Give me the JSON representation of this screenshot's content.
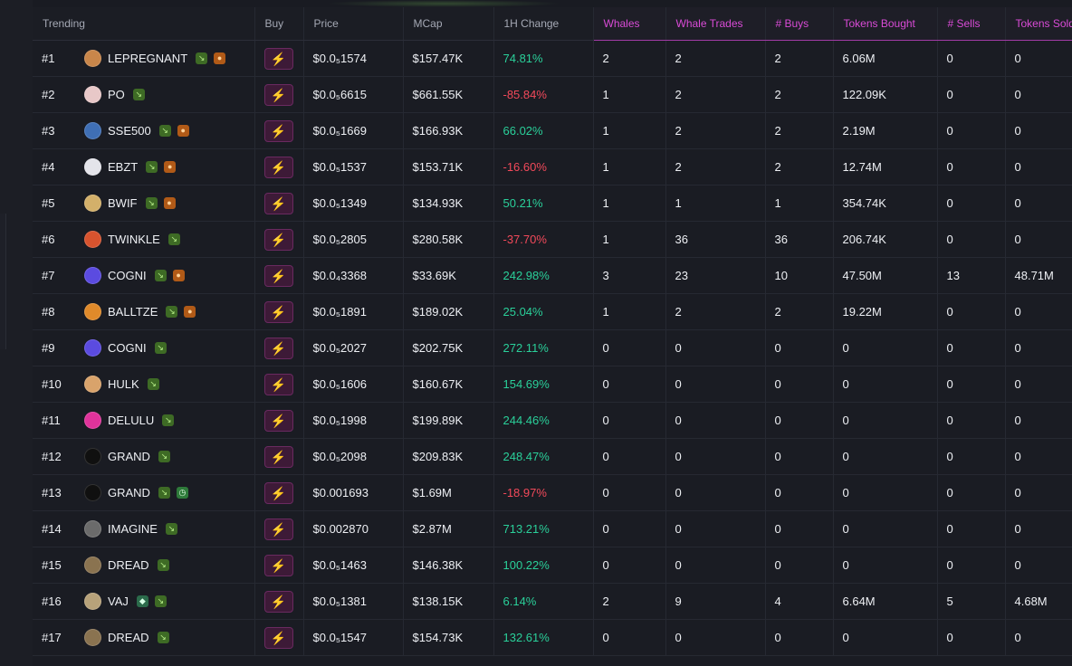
{
  "columns": {
    "trending": "Trending",
    "buy": "Buy",
    "price": "Price",
    "mcap": "MCap",
    "change": "1H Change",
    "whales": "Whales",
    "whale_trades": "Whale Trades",
    "buys": "# Buys",
    "tokens_bought": "Tokens Bought",
    "sells": "# Sells",
    "tokens_sold": "Tokens Sold"
  },
  "colors": {
    "accent": "#d94bd6",
    "positive": "#2ad09a",
    "negative": "#f2495a",
    "buy_icon": "#ff3ff0"
  },
  "buy_icon": "lightning-icon",
  "rows": [
    {
      "rank": "#1",
      "token": "LEPREGNANT",
      "avatar": "#c9864a",
      "badges": [
        "sprout",
        "cookie"
      ],
      "price": "$0.0₅1574",
      "mcap": "$157.47K",
      "change": "74.81%",
      "dir": "pos",
      "whales": "2",
      "whale_trades": "2",
      "buys": "2",
      "tokens_bought": "6.06M",
      "sells": "0",
      "tokens_sold": "0"
    },
    {
      "rank": "#2",
      "token": "PO",
      "avatar": "#e8c8c8",
      "badges": [
        "sprout"
      ],
      "price": "$0.0₅6615",
      "mcap": "$661.55K",
      "change": "-85.84%",
      "dir": "neg",
      "whales": "1",
      "whale_trades": "2",
      "buys": "2",
      "tokens_bought": "122.09K",
      "sells": "0",
      "tokens_sold": "0"
    },
    {
      "rank": "#3",
      "token": "SSE500",
      "avatar": "#3f6fb5",
      "badges": [
        "sprout",
        "cookie"
      ],
      "price": "$0.0₅1669",
      "mcap": "$166.93K",
      "change": "66.02%",
      "dir": "pos",
      "whales": "1",
      "whale_trades": "2",
      "buys": "2",
      "tokens_bought": "2.19M",
      "sells": "0",
      "tokens_sold": "0"
    },
    {
      "rank": "#4",
      "token": "EBZT",
      "avatar": "#e4e4ea",
      "badges": [
        "sprout",
        "cookie"
      ],
      "price": "$0.0₅1537",
      "mcap": "$153.71K",
      "change": "-16.60%",
      "dir": "neg",
      "whales": "1",
      "whale_trades": "2",
      "buys": "2",
      "tokens_bought": "12.74M",
      "sells": "0",
      "tokens_sold": "0"
    },
    {
      "rank": "#5",
      "token": "BWIF",
      "avatar": "#d3b06a",
      "badges": [
        "sprout",
        "cookie"
      ],
      "price": "$0.0₅1349",
      "mcap": "$134.93K",
      "change": "50.21%",
      "dir": "pos",
      "whales": "1",
      "whale_trades": "1",
      "buys": "1",
      "tokens_bought": "354.74K",
      "sells": "0",
      "tokens_sold": "0"
    },
    {
      "rank": "#6",
      "token": "TWINKLE",
      "avatar": "#d8532e",
      "badges": [
        "sprout"
      ],
      "price": "$0.0₅2805",
      "mcap": "$280.58K",
      "change": "-37.70%",
      "dir": "neg",
      "whales": "1",
      "whale_trades": "36",
      "buys": "36",
      "tokens_bought": "206.74K",
      "sells": "0",
      "tokens_sold": "0"
    },
    {
      "rank": "#7",
      "token": "COGNI",
      "avatar": "#5b4be0",
      "badges": [
        "sprout",
        "cookie"
      ],
      "price": "$0.0₄3368",
      "mcap": "$33.69K",
      "change": "242.98%",
      "dir": "pos",
      "whales": "3",
      "whale_trades": "23",
      "buys": "10",
      "tokens_bought": "47.50M",
      "sells": "13",
      "tokens_sold": "48.71M"
    },
    {
      "rank": "#8",
      "token": "BALLTZE",
      "avatar": "#e08a2a",
      "badges": [
        "sprout",
        "cookie"
      ],
      "price": "$0.0₅1891",
      "mcap": "$189.02K",
      "change": "25.04%",
      "dir": "pos",
      "whales": "1",
      "whale_trades": "2",
      "buys": "2",
      "tokens_bought": "19.22M",
      "sells": "0",
      "tokens_sold": "0"
    },
    {
      "rank": "#9",
      "token": "COGNI",
      "avatar": "#5b4be0",
      "badges": [
        "sprout"
      ],
      "price": "$0.0₅2027",
      "mcap": "$202.75K",
      "change": "272.11%",
      "dir": "pos",
      "whales": "0",
      "whale_trades": "0",
      "buys": "0",
      "tokens_bought": "0",
      "sells": "0",
      "tokens_sold": "0"
    },
    {
      "rank": "#10",
      "token": "HULK",
      "avatar": "#d9a36b",
      "badges": [
        "sprout"
      ],
      "price": "$0.0₅1606",
      "mcap": "$160.67K",
      "change": "154.69%",
      "dir": "pos",
      "whales": "0",
      "whale_trades": "0",
      "buys": "0",
      "tokens_bought": "0",
      "sells": "0",
      "tokens_sold": "0"
    },
    {
      "rank": "#11",
      "token": "DELULU",
      "avatar": "#e0339b",
      "badges": [
        "sprout"
      ],
      "price": "$0.0₅1998",
      "mcap": "$199.89K",
      "change": "244.46%",
      "dir": "pos",
      "whales": "0",
      "whale_trades": "0",
      "buys": "0",
      "tokens_bought": "0",
      "sells": "0",
      "tokens_sold": "0"
    },
    {
      "rank": "#12",
      "token": "GRAND",
      "avatar": "#101010",
      "badges": [
        "sprout"
      ],
      "price": "$0.0₅2098",
      "mcap": "$209.83K",
      "change": "248.47%",
      "dir": "pos",
      "whales": "0",
      "whale_trades": "0",
      "buys": "0",
      "tokens_bought": "0",
      "sells": "0",
      "tokens_sold": "0"
    },
    {
      "rank": "#13",
      "token": "GRAND",
      "avatar": "#101010",
      "badges": [
        "sprout",
        "clock"
      ],
      "price": "$0.001693",
      "mcap": "$1.69M",
      "change": "-18.97%",
      "dir": "neg",
      "whales": "0",
      "whale_trades": "0",
      "buys": "0",
      "tokens_bought": "0",
      "sells": "0",
      "tokens_sold": "0"
    },
    {
      "rank": "#14",
      "token": "IMAGINE",
      "avatar": "#6b6b6b",
      "badges": [
        "sprout"
      ],
      "price": "$0.002870",
      "mcap": "$2.87M",
      "change": "713.21%",
      "dir": "pos",
      "whales": "0",
      "whale_trades": "0",
      "buys": "0",
      "tokens_bought": "0",
      "sells": "0",
      "tokens_sold": "0"
    },
    {
      "rank": "#15",
      "token": "DREAD",
      "avatar": "#8a7350",
      "badges": [
        "sprout"
      ],
      "price": "$0.0₅1463",
      "mcap": "$146.38K",
      "change": "100.22%",
      "dir": "pos",
      "whales": "0",
      "whale_trades": "0",
      "buys": "0",
      "tokens_bought": "0",
      "sells": "0",
      "tokens_sold": "0"
    },
    {
      "rank": "#16",
      "token": "VAJ",
      "avatar": "#b7a27a",
      "badges": [
        "pill",
        "sprout"
      ],
      "price": "$0.0₅1381",
      "mcap": "$138.15K",
      "change": "6.14%",
      "dir": "pos",
      "whales": "2",
      "whale_trades": "9",
      "buys": "4",
      "tokens_bought": "6.64M",
      "sells": "5",
      "tokens_sold": "4.68M"
    },
    {
      "rank": "#17",
      "token": "DREAD",
      "avatar": "#8a7350",
      "badges": [
        "sprout"
      ],
      "price": "$0.0₅1547",
      "mcap": "$154.73K",
      "change": "132.61%",
      "dir": "pos",
      "whales": "0",
      "whale_trades": "0",
      "buys": "0",
      "tokens_bought": "0",
      "sells": "0",
      "tokens_sold": "0"
    }
  ]
}
